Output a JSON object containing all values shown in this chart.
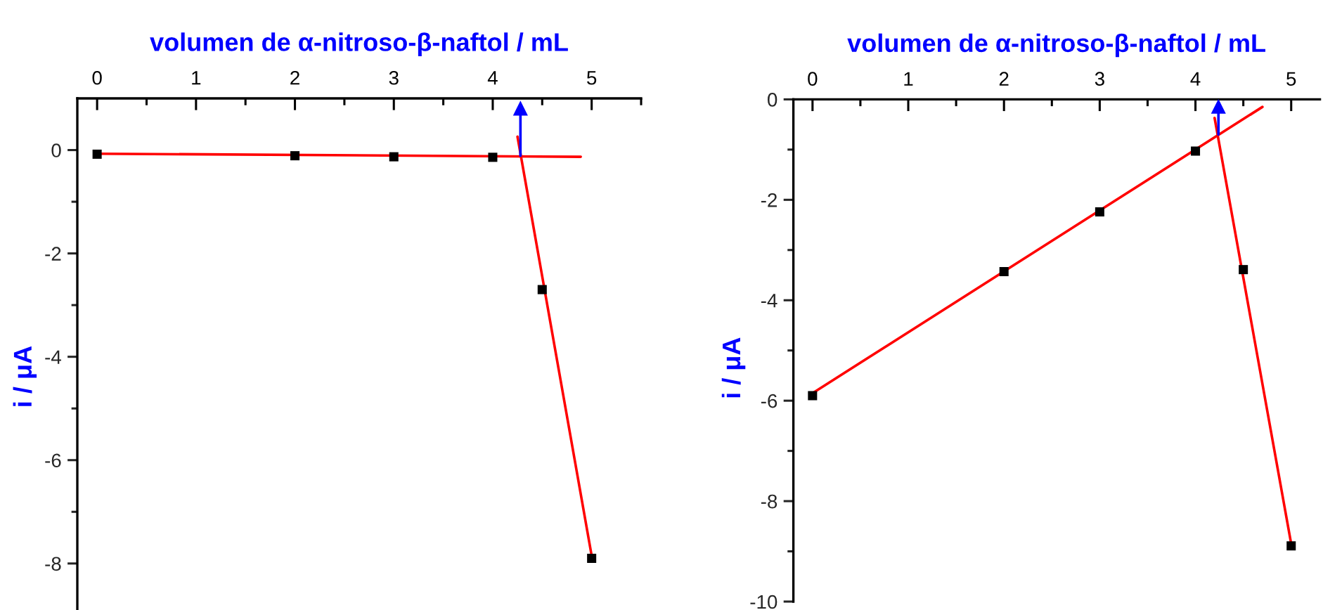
{
  "chart_data": [
    {
      "type": "scatter",
      "xlabel": "volumen de α-nitroso-β-naftol / mL",
      "ylabel": "i / μA",
      "xlim": [
        -0.2,
        5.5
      ],
      "xticks": [
        0,
        {
          "value": 0.5,
          "label": null
        },
        1,
        {
          "value": 1.5,
          "label": null
        },
        2,
        {
          "value": 2.5,
          "label": null
        },
        3,
        {
          "value": 3.5,
          "label": null
        },
        4,
        {
          "value": 4.5,
          "label": null
        },
        5,
        {
          "value": 5.5,
          "label": null
        }
      ],
      "ylim": [
        -8.9,
        1
      ],
      "yticks": [
        0,
        {
          "value": -1,
          "label": null
        },
        -2,
        {
          "value": -3,
          "label": null
        },
        -4,
        {
          "value": -5,
          "label": null
        },
        -6,
        {
          "value": -7,
          "label": null
        },
        -8
      ],
      "series": [
        {
          "color": "#000000",
          "marker": "square",
          "x": [
            0,
            2,
            3,
            4,
            4.5,
            5
          ],
          "values": [
            -0.08,
            -0.11,
            -0.13,
            -0.14,
            -2.7,
            -7.9
          ]
        },
        {
          "type": "line",
          "color": "#ff0000",
          "x": [
            0,
            4.89
          ],
          "values": [
            -0.07,
            -0.13
          ]
        },
        {
          "type": "line",
          "color": "#ff0000",
          "x": [
            4.25,
            5
          ],
          "values": [
            0.26,
            -7.85
          ]
        },
        {
          "type": "line",
          "color": "#0000ff",
          "marker": "triangle",
          "x": [
            4.28,
            4.28
          ],
          "values": [
            -0.11,
            0.8
          ]
        }
      ]
    },
    {
      "type": "scatter",
      "xlabel": "volumen de α-nitroso-β-naftol / mL",
      "ylabel": "i / μA",
      "xlim": [
        -0.2,
        5.3
      ],
      "xticks": [
        0,
        {
          "value": 0.5,
          "label": null
        },
        1,
        {
          "value": 1.5,
          "label": null
        },
        2,
        {
          "value": 2.5,
          "label": null
        },
        3,
        {
          "value": 3.5,
          "label": null
        },
        4,
        {
          "value": 4.5,
          "label": null
        },
        5
      ],
      "ylim": [
        -10,
        0
      ],
      "yticks": [
        0,
        {
          "value": -1,
          "label": null
        },
        -2,
        {
          "value": -3,
          "label": null
        },
        -4,
        {
          "value": -5,
          "label": null
        },
        -6,
        {
          "value": -7,
          "label": null
        },
        -8,
        {
          "value": -9,
          "label": null
        },
        -10
      ],
      "series": [
        {
          "color": "#000000",
          "marker": "square",
          "x": [
            0,
            2,
            3,
            4,
            4.5,
            5
          ],
          "values": [
            -5.9,
            -3.43,
            -2.24,
            -1.03,
            -3.39,
            -8.89
          ]
        },
        {
          "type": "line",
          "color": "#ff0000",
          "x": [
            0,
            4.7
          ],
          "values": [
            -5.85,
            -0.15
          ]
        },
        {
          "type": "line",
          "color": "#ff0000",
          "x": [
            4.2,
            5
          ],
          "values": [
            -0.37,
            -8.85
          ]
        },
        {
          "type": "line",
          "color": "#0000ff",
          "marker": "triangle",
          "x": [
            4.24,
            4.24
          ],
          "values": [
            -0.7,
            -0.15
          ]
        }
      ]
    }
  ]
}
